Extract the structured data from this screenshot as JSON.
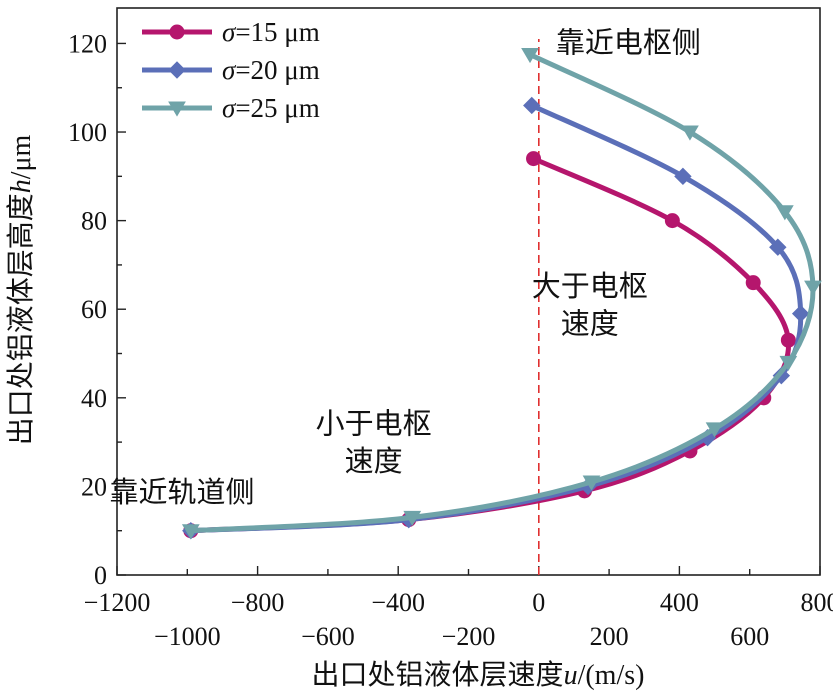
{
  "chart_data": {
    "type": "line",
    "xlabel_prefix": "出口处铝液体层速度",
    "xlabel_var": "u",
    "xlabel_unit": "/(m/s)",
    "ylabel_prefix": "出口处铝液体层高度",
    "ylabel_var": "h",
    "ylabel_unit": "/μm",
    "xlim": [
      -1200,
      800
    ],
    "ylim": [
      0,
      128
    ],
    "x_ticks_upper": [
      "-1200",
      "-800",
      "-400",
      "0",
      "400",
      "800"
    ],
    "x_ticks_lower": [
      "-1000",
      "-600",
      "-200",
      "200",
      "600"
    ],
    "y_ticks": [
      "0",
      "20",
      "40",
      "60",
      "80",
      "100",
      "120"
    ],
    "reference_line": {
      "x": 0,
      "color": "#e03030"
    },
    "series": [
      {
        "name": "σ=15 μm",
        "legend_var": "σ",
        "legend_rest": "=15 μm",
        "color": "#b5166d",
        "marker": "circle",
        "points": [
          [
            -990,
            10
          ],
          [
            -370,
            12.5
          ],
          [
            130,
            19
          ],
          [
            430,
            28
          ],
          [
            640,
            40
          ],
          [
            710,
            53
          ],
          [
            610,
            66
          ],
          [
            380,
            80
          ],
          [
            -15,
            94
          ]
        ]
      },
      {
        "name": "σ=20 μm",
        "legend_var": "σ",
        "legend_rest": "=20 μm",
        "color": "#5b6fb8",
        "marker": "diamond",
        "points": [
          [
            -990,
            10
          ],
          [
            -370,
            12.5
          ],
          [
            140,
            20
          ],
          [
            480,
            31
          ],
          [
            690,
            45
          ],
          [
            745,
            59
          ],
          [
            680,
            74
          ],
          [
            410,
            90
          ],
          [
            -20,
            106
          ]
        ]
      },
      {
        "name": "σ=25 μm",
        "legend_var": "σ",
        "legend_rest": "=25 μm",
        "color": "#6fa3a8",
        "marker": "triangle-down",
        "points": [
          [
            -990,
            10
          ],
          [
            -360,
            13
          ],
          [
            150,
            21
          ],
          [
            500,
            33
          ],
          [
            710,
            48
          ],
          [
            780,
            65
          ],
          [
            700,
            82
          ],
          [
            430,
            100
          ],
          [
            -25,
            117.5
          ]
        ]
      }
    ],
    "annotations": [
      {
        "text": "靠近电枢侧",
        "x": 255,
        "y": 118
      },
      {
        "text": "大于电枢",
        "x": 145,
        "y": 63
      },
      {
        "text": "速度",
        "x": 145,
        "y": 54.5
      },
      {
        "text": "小于电枢",
        "x": -470,
        "y": 32
      },
      {
        "text": "速度",
        "x": -470,
        "y": 23.5
      },
      {
        "text": "靠近轨道侧",
        "x": -1015,
        "y": 16.5
      }
    ]
  }
}
